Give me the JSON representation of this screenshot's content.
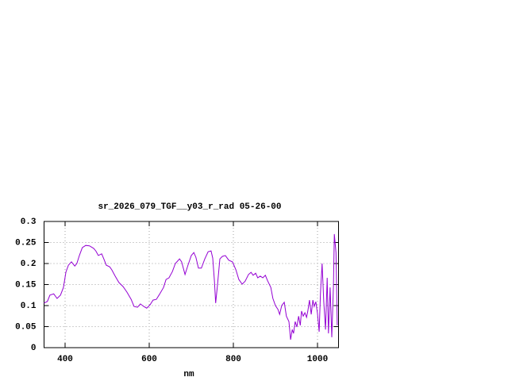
{
  "chart_data": {
    "type": "line",
    "title": "sr_2026_079_TGF__y03_r_rad 05-26-00",
    "x_label": "nm",
    "x": [
      350,
      358,
      364,
      373,
      381,
      389,
      396,
      402,
      408,
      415,
      423,
      428,
      434,
      441,
      449,
      458,
      468,
      473,
      479,
      487,
      492,
      498,
      506,
      511,
      519,
      528,
      538,
      547,
      557,
      564,
      572,
      579,
      587,
      594,
      602,
      609,
      617,
      624,
      634,
      640,
      647,
      655,
      662,
      672,
      677,
      685,
      692,
      700,
      706,
      711,
      717,
      724,
      732,
      740,
      747,
      751,
      755,
      758,
      762,
      768,
      774,
      781,
      789,
      798,
      806,
      813,
      821,
      828,
      836,
      842,
      847,
      853,
      858,
      864,
      870,
      876,
      881,
      889,
      894,
      900,
      906,
      910,
      915,
      921,
      926,
      932,
      936,
      940,
      943,
      947,
      951,
      955,
      959,
      962,
      966,
      970,
      974,
      977,
      981,
      985,
      989,
      992,
      996,
      1000,
      1004,
      1007,
      1011,
      1015,
      1019,
      1023,
      1026,
      1030,
      1034,
      1038,
      1040,
      1044,
      1047
    ],
    "values": [
      0.106,
      0.11,
      0.125,
      0.128,
      0.117,
      0.125,
      0.143,
      0.18,
      0.196,
      0.204,
      0.194,
      0.2,
      0.219,
      0.238,
      0.243,
      0.242,
      0.236,
      0.23,
      0.219,
      0.223,
      0.211,
      0.196,
      0.192,
      0.185,
      0.17,
      0.155,
      0.145,
      0.132,
      0.115,
      0.098,
      0.096,
      0.104,
      0.098,
      0.094,
      0.102,
      0.113,
      0.115,
      0.126,
      0.143,
      0.162,
      0.166,
      0.181,
      0.2,
      0.211,
      0.204,
      0.174,
      0.196,
      0.219,
      0.226,
      0.215,
      0.189,
      0.189,
      0.211,
      0.228,
      0.23,
      0.213,
      0.157,
      0.106,
      0.147,
      0.211,
      0.217,
      0.219,
      0.208,
      0.204,
      0.185,
      0.162,
      0.151,
      0.158,
      0.174,
      0.179,
      0.172,
      0.177,
      0.166,
      0.17,
      0.166,
      0.172,
      0.16,
      0.143,
      0.117,
      0.1,
      0.091,
      0.079,
      0.1,
      0.108,
      0.075,
      0.062,
      0.019,
      0.043,
      0.034,
      0.062,
      0.049,
      0.075,
      0.053,
      0.087,
      0.075,
      0.083,
      0.072,
      0.087,
      0.113,
      0.079,
      0.113,
      0.098,
      0.109,
      0.081,
      0.038,
      0.128,
      0.2,
      0.109,
      0.043,
      0.166,
      0.034,
      0.143,
      0.025,
      0.147,
      0.27,
      0.226,
      0.053
    ],
    "color": "#9400d3",
    "xlim": [
      350,
      1050
    ],
    "xticks": [
      400,
      600,
      800,
      1000
    ],
    "ylim": [
      0,
      0.3
    ],
    "yticks": [
      0,
      0.05,
      0.1,
      0.15,
      0.2,
      0.25,
      0.3
    ],
    "grid": true
  }
}
